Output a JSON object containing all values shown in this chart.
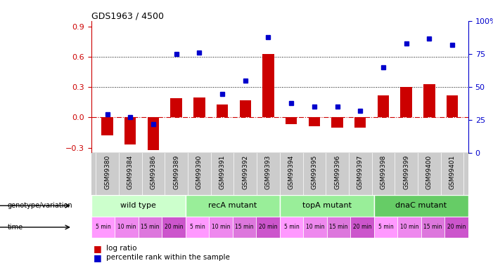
{
  "title": "GDS1963 / 4500",
  "samples": [
    "GSM99380",
    "GSM99384",
    "GSM99386",
    "GSM99389",
    "GSM99390",
    "GSM99391",
    "GSM99392",
    "GSM99393",
    "GSM99394",
    "GSM99395",
    "GSM99396",
    "GSM99397",
    "GSM99398",
    "GSM99399",
    "GSM99400",
    "GSM99401"
  ],
  "log_ratio": [
    -0.18,
    -0.27,
    -0.32,
    0.19,
    0.2,
    0.13,
    0.17,
    0.63,
    -0.07,
    -0.09,
    -0.1,
    -0.1,
    0.22,
    0.3,
    0.33,
    0.22
  ],
  "percentile_rank": [
    29,
    27,
    22,
    75,
    76,
    45,
    55,
    88,
    38,
    35,
    35,
    32,
    65,
    83,
    87,
    82
  ],
  "bar_color": "#cc0000",
  "point_color": "#0000cc",
  "ylim_left": [
    -0.35,
    0.95
  ],
  "ylim_right": [
    0,
    100
  ],
  "yticks_left": [
    -0.3,
    0.0,
    0.3,
    0.6,
    0.9
  ],
  "yticks_right": [
    0,
    25,
    50,
    75,
    100
  ],
  "zero_line_color": "#cc0000",
  "bg_color": "#ffffff",
  "groups": [
    {
      "label": "wild type",
      "start": 0,
      "end": 4,
      "color": "#ccffcc"
    },
    {
      "label": "recA mutant",
      "start": 4,
      "end": 8,
      "color": "#99ee99"
    },
    {
      "label": "topA mutant",
      "start": 8,
      "end": 12,
      "color": "#99ee99"
    },
    {
      "label": "dnaC mutant",
      "start": 12,
      "end": 16,
      "color": "#66cc66"
    }
  ],
  "time_labels": [
    "5 min",
    "10 min",
    "15 min",
    "20 min",
    "5 min",
    "10 min",
    "15 min",
    "20 min",
    "5 min",
    "10 min",
    "15 min",
    "20 min",
    "5 min",
    "10 min",
    "15 min",
    "20 min"
  ],
  "legend_text1": "log ratio",
  "legend_text2": "percentile rank within the sample"
}
